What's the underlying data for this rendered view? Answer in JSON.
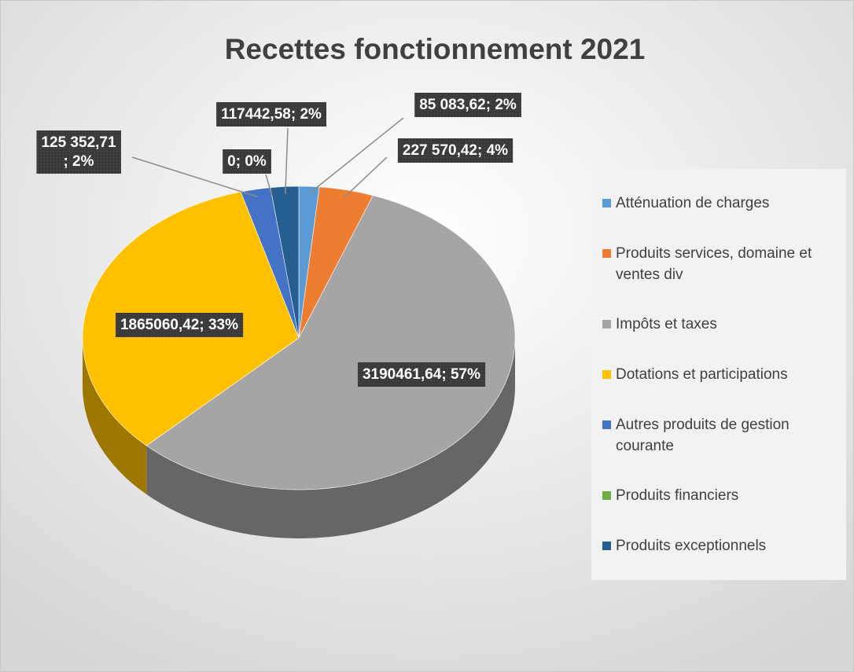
{
  "chart_data": {
    "type": "pie",
    "title": "Recettes fonctionnement 2021",
    "categories": [
      "Atténuation de charges",
      "Produits services, domaine et ventes div",
      "Impôts et taxes",
      "Dotations et participations",
      "Autres produits de gestion courante",
      "Produits financiers",
      "Produits exceptionnels"
    ],
    "values": [
      85083.62,
      227570.42,
      3190461.64,
      1865060.42,
      125352.71,
      0,
      117442.58
    ],
    "value_labels": [
      "85 083,62; 2%",
      "227 570,42; 4%",
      "3190461,64; 57%",
      "1865060,42; 33%",
      "125 352,71\n; 2%",
      "0; 0%",
      "117442,58; 2%"
    ],
    "colors": [
      "#5b9bd5",
      "#ed7d31",
      "#a5a5a5",
      "#ffc000",
      "#4472c4",
      "#70ad47",
      "#255e91"
    ],
    "legend": "right"
  }
}
